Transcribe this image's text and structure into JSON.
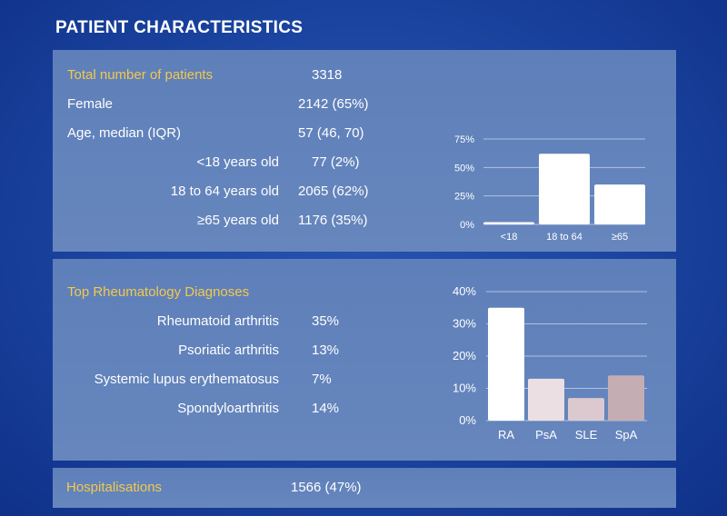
{
  "page_title": "PATIENT CHARACTERISTICS",
  "characteristics": {
    "total_label": "Total number of patients",
    "total_value": "3318",
    "female_label": "Female",
    "female_value": "2142 (65%)",
    "age_label": "Age, median (IQR)",
    "age_value": "57 (46, 70)",
    "under18_label": "<18 years old",
    "under18_value": "77 (2%)",
    "mid_label": "18 to 64 years old",
    "mid_value": "2065 (62%)",
    "over65_label": "≥65 years old",
    "over65_value": "1176 (35%)"
  },
  "diagnoses": {
    "heading": "Top Rheumatology Diagnoses",
    "items": [
      {
        "label": "Rheumatoid arthritis",
        "value": "35%"
      },
      {
        "label": "Psoriatic arthritis",
        "value": "13%"
      },
      {
        "label": "Systemic lupus erythematosus",
        "value": "7%"
      },
      {
        "label": "Spondyloarthritis",
        "value": "14%"
      }
    ]
  },
  "hospitalisations": {
    "label": "Hospitalisations",
    "value": "1566 (47%)"
  },
  "colors": {
    "accent_gold": "#f2c94c",
    "bar_white": "#ffffff",
    "bar_pink_light": "#ecdfe3",
    "bar_pink_mid": "#dcc9cf",
    "bar_mauve": "#c4aeb3"
  },
  "chart_data": [
    {
      "type": "bar",
      "categories": [
        "<18",
        "18 to 64",
        "≥65"
      ],
      "values": [
        2,
        62,
        35
      ],
      "ylim": [
        0,
        75
      ],
      "yticks": [
        0,
        25,
        50,
        75
      ],
      "ytick_labels": [
        "0%",
        "25%",
        "50%",
        "75%"
      ],
      "grid": true
    },
    {
      "type": "bar",
      "categories": [
        "RA",
        "PsA",
        "SLE",
        "SpA"
      ],
      "values": [
        35,
        13,
        7,
        14
      ],
      "ylim": [
        0,
        40
      ],
      "yticks": [
        0,
        10,
        20,
        30,
        40
      ],
      "ytick_labels": [
        "0%",
        "10%",
        "20%",
        "30%",
        "40%"
      ],
      "grid": true
    }
  ]
}
